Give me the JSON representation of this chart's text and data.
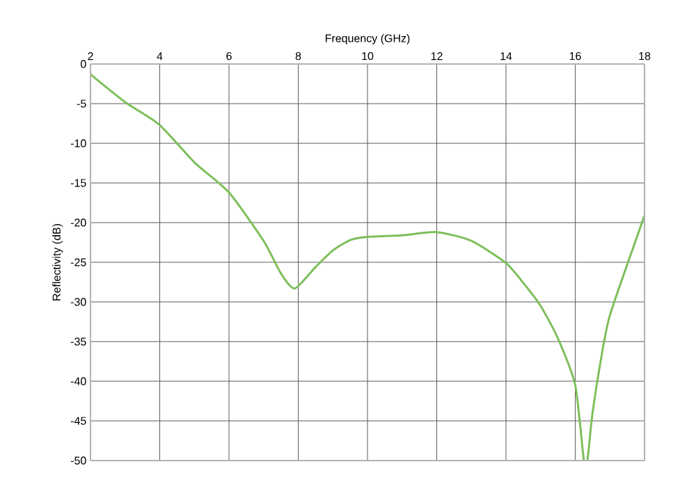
{
  "chart_data": {
    "type": "line",
    "xlabel": "Frequency (GHz)",
    "ylabel": "Reflectivity (dB)",
    "x": [
      2,
      3,
      4,
      5,
      6,
      7,
      7.5,
      7.9,
      8.5,
      9,
      9.5,
      10,
      11,
      12,
      13,
      14,
      14.5,
      15,
      15.5,
      16,
      16.25,
      16.35,
      16.5,
      16.8,
      17,
      17.5,
      18
    ],
    "series": [
      {
        "color": "#7dbf5a",
        "values": [
          -1.3,
          -4.8,
          -7.7,
          -12.4,
          -16.2,
          -22.3,
          -26.4,
          -28.3,
          -25.6,
          -23.5,
          -22.2,
          -21.8,
          -21.6,
          -21.2,
          -22.3,
          -25.1,
          -27.6,
          -30.5,
          -34.6,
          -40.5,
          -50,
          -50,
          -44,
          -35.8,
          -31.7,
          -25.3,
          -19.1
        ]
      }
    ],
    "xlim": [
      2,
      18
    ],
    "ylim": [
      -50,
      0
    ],
    "xticks": [
      2,
      4,
      6,
      8,
      10,
      12,
      14,
      16,
      18
    ],
    "yticks": [
      -50,
      -45,
      -40,
      -35,
      -30,
      -25,
      -20,
      -15,
      -10,
      -5,
      0
    ],
    "grid": true
  }
}
